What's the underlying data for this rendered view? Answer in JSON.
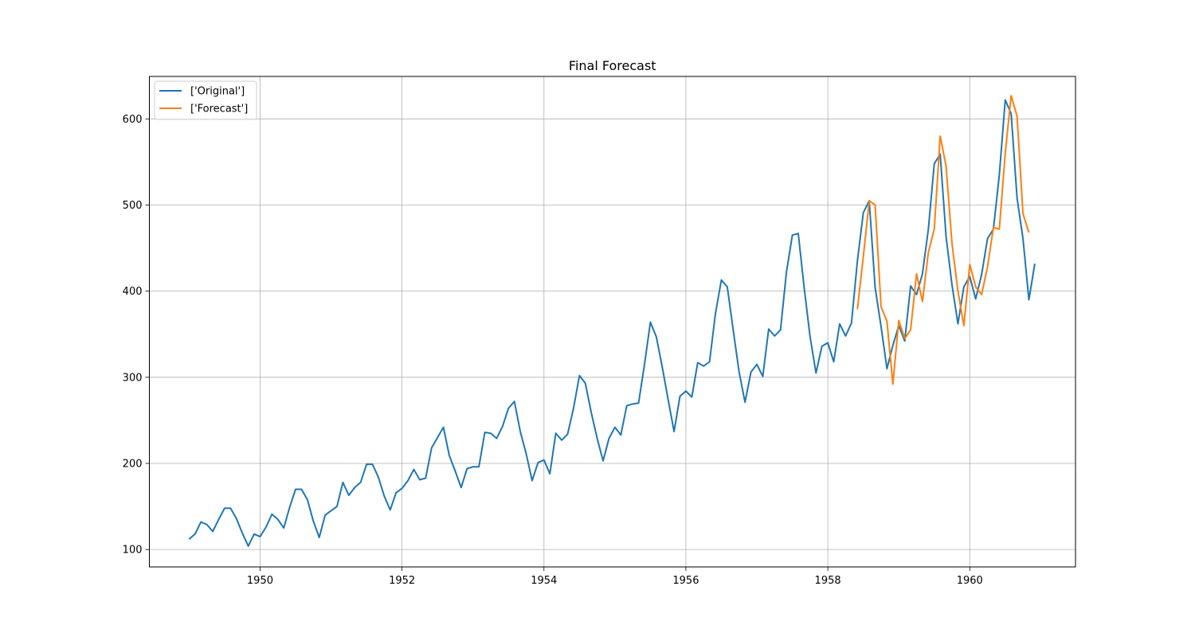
{
  "chart_data": {
    "type": "line",
    "title": "Final Forecast",
    "xlabel": "",
    "ylabel": "",
    "xlim": [
      1948.44,
      1961.49
    ],
    "ylim": [
      79.8,
      649.3
    ],
    "grid": true,
    "legend_position": "top-left",
    "x_ticks": [
      1950,
      1952,
      1954,
      1956,
      1958,
      1960
    ],
    "x_tick_labels": [
      "1950",
      "1952",
      "1954",
      "1956",
      "1958",
      "1960"
    ],
    "y_ticks": [
      100,
      200,
      300,
      400,
      500,
      600
    ],
    "y_tick_labels": [
      "100",
      "200",
      "300",
      "400",
      "500",
      "600"
    ],
    "series": [
      {
        "name": "['Original']",
        "color": "#1f77b4",
        "x_start": 1949.0,
        "x_step": 0.0833333,
        "values": [
          112,
          118,
          132,
          129,
          121,
          135,
          148,
          148,
          136,
          119,
          104,
          118,
          115,
          126,
          141,
          135,
          125,
          149,
          170,
          170,
          158,
          133,
          114,
          140,
          145,
          150,
          178,
          163,
          172,
          178,
          199,
          199,
          184,
          162,
          146,
          166,
          171,
          180,
          193,
          181,
          183,
          218,
          230,
          242,
          209,
          191,
          172,
          194,
          196,
          196,
          236,
          235,
          229,
          243,
          264,
          272,
          237,
          211,
          180,
          201,
          204,
          188,
          235,
          227,
          234,
          264,
          302,
          293,
          259,
          229,
          203,
          229,
          242,
          233,
          267,
          269,
          270,
          315,
          364,
          347,
          312,
          274,
          237,
          278,
          284,
          277,
          317,
          313,
          318,
          374,
          413,
          405,
          355,
          306,
          271,
          306,
          315,
          301,
          356,
          348,
          355,
          422,
          465,
          467,
          404,
          347,
          305,
          336,
          340,
          318,
          362,
          348,
          363,
          435,
          491,
          505,
          404,
          359,
          310,
          337,
          360,
          342,
          406,
          396,
          420,
          472,
          548,
          559,
          463,
          407,
          362,
          405,
          417,
          391,
          419,
          461,
          472,
          535,
          622,
          606,
          508,
          461,
          390,
          432
        ]
      },
      {
        "name": "['Forecast']",
        "color": "#ff7f0e",
        "x_start": 1958.4167,
        "x_step": 0.0833333,
        "values": [
          379,
          440,
          505,
          500,
          382,
          365,
          292,
          366,
          345,
          355,
          420,
          388,
          445,
          472,
          580,
          545,
          455,
          400,
          360,
          431,
          405,
          396,
          428,
          474,
          472,
          560,
          627,
          603,
          490,
          468
        ]
      }
    ]
  }
}
